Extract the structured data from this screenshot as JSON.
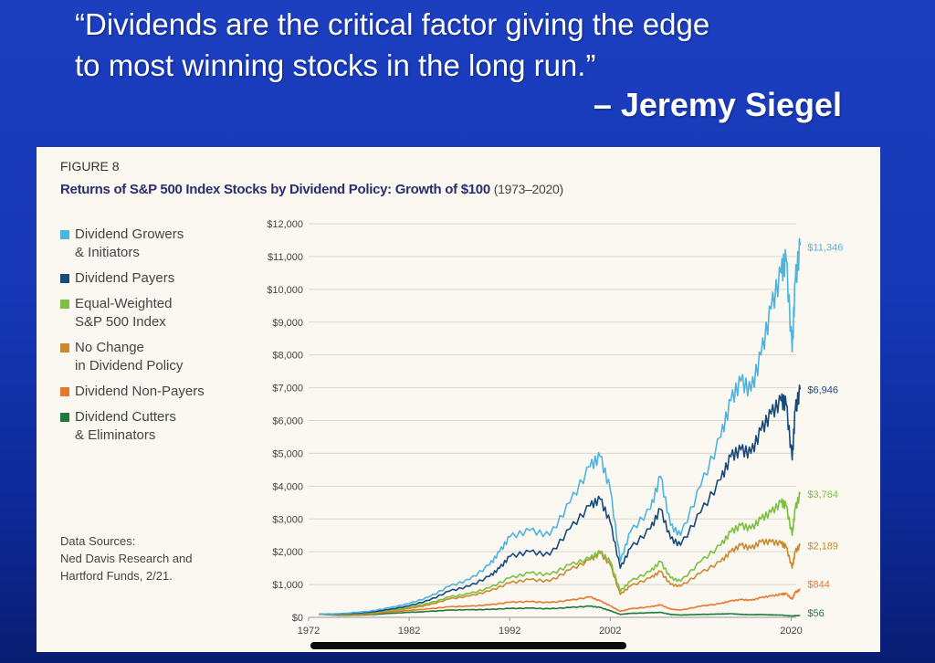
{
  "quote": {
    "line1": "“Dividends are the critical factor giving the edge",
    "line2": "to most winning stocks in the long run.”",
    "author": "– Jeremy Siegel"
  },
  "figure": {
    "label": "FIGURE 8",
    "title": "Returns of S&P 500 Index Stocks by Dividend Policy: Growth of $100",
    "subtitle": "(1973–2020)",
    "sources": "Data Sources:\nNed Davis Research and\nHartford Funds, 2/21."
  },
  "chart_data": {
    "type": "line",
    "title": "Returns of S&P 500 Index Stocks by Dividend Policy: Growth of $100",
    "subtitle": "(1973–2020)",
    "x_ticks": [
      "1972",
      "1982",
      "1992",
      "2002",
      "2020"
    ],
    "x_tick_years": [
      1972,
      1982,
      1992,
      2002,
      2020
    ],
    "xlim": [
      1972,
      2020.5
    ],
    "y_ticks": [
      "$0",
      "$1,000",
      "$2,000",
      "$3,000",
      "$4,000",
      "$5,000",
      "$6,000",
      "$7,000",
      "$8,000",
      "$9,000",
      "$10,000",
      "$11,000",
      "$12,000"
    ],
    "ylim": [
      0,
      12000
    ],
    "grid": "horizontal",
    "legend_position": "left",
    "series": [
      {
        "name": "Dividend Growers\n& Initiators",
        "color": "#4fb3e0",
        "end_label": "$11,346",
        "points": [
          [
            1973,
            100
          ],
          [
            1975,
            110
          ],
          [
            1978,
            180
          ],
          [
            1980,
            290
          ],
          [
            1982,
            420
          ],
          [
            1984,
            620
          ],
          [
            1986,
            950
          ],
          [
            1988,
            1150
          ],
          [
            1990,
            1600
          ],
          [
            1991,
            2000
          ],
          [
            1992,
            2450
          ],
          [
            1994,
            2650
          ],
          [
            1996,
            2500
          ],
          [
            1998,
            3500
          ],
          [
            2000,
            4600
          ],
          [
            2001,
            4900
          ],
          [
            2002,
            3900
          ],
          [
            2003,
            1700
          ],
          [
            2004,
            2600
          ],
          [
            2006,
            3300
          ],
          [
            2007,
            4300
          ],
          [
            2008,
            2800
          ],
          [
            2009,
            2500
          ],
          [
            2011,
            4000
          ],
          [
            2013,
            5500
          ],
          [
            2014,
            6600
          ],
          [
            2015,
            7200
          ],
          [
            2016,
            6900
          ],
          [
            2017,
            8000
          ],
          [
            2018,
            9400
          ],
          [
            2019,
            10500
          ],
          [
            2019.5,
            10900
          ],
          [
            2020.1,
            8100
          ],
          [
            2020.4,
            10200
          ],
          [
            2020.9,
            11346
          ]
        ]
      },
      {
        "name": "Dividend Payers",
        "color": "#17497a",
        "end_label": "$6,946",
        "points": [
          [
            1973,
            100
          ],
          [
            1975,
            100
          ],
          [
            1978,
            150
          ],
          [
            1980,
            240
          ],
          [
            1982,
            350
          ],
          [
            1984,
            520
          ],
          [
            1986,
            800
          ],
          [
            1988,
            950
          ],
          [
            1990,
            1250
          ],
          [
            1991,
            1500
          ],
          [
            1992,
            1850
          ],
          [
            1994,
            2000
          ],
          [
            1996,
            1900
          ],
          [
            1998,
            2700
          ],
          [
            2000,
            3400
          ],
          [
            2001,
            3600
          ],
          [
            2002,
            2900
          ],
          [
            2003,
            1500
          ],
          [
            2004,
            2100
          ],
          [
            2006,
            2700
          ],
          [
            2007,
            3300
          ],
          [
            2008,
            2400
          ],
          [
            2009,
            2200
          ],
          [
            2011,
            3200
          ],
          [
            2013,
            4200
          ],
          [
            2014,
            4900
          ],
          [
            2015,
            5100
          ],
          [
            2016,
            5000
          ],
          [
            2017,
            5700
          ],
          [
            2018,
            6200
          ],
          [
            2019,
            6600
          ],
          [
            2019.5,
            6500
          ],
          [
            2020.1,
            4800
          ],
          [
            2020.4,
            6300
          ],
          [
            2020.9,
            6946
          ]
        ]
      },
      {
        "name": "Equal-Weighted\nS&P 500 Index",
        "color": "#7ac043",
        "end_label": "$3,764",
        "points": [
          [
            1973,
            100
          ],
          [
            1975,
            90
          ],
          [
            1978,
            130
          ],
          [
            1980,
            210
          ],
          [
            1982,
            300
          ],
          [
            1984,
            430
          ],
          [
            1986,
            620
          ],
          [
            1988,
            720
          ],
          [
            1990,
            900
          ],
          [
            1992,
            1200
          ],
          [
            1994,
            1350
          ],
          [
            1996,
            1300
          ],
          [
            1998,
            1600
          ],
          [
            2000,
            1800
          ],
          [
            2001,
            2000
          ],
          [
            2002,
            1700
          ],
          [
            2003,
            800
          ],
          [
            2004,
            1100
          ],
          [
            2006,
            1400
          ],
          [
            2007,
            1700
          ],
          [
            2008,
            1200
          ],
          [
            2009,
            1100
          ],
          [
            2011,
            1700
          ],
          [
            2013,
            2200
          ],
          [
            2014,
            2600
          ],
          [
            2015,
            2800
          ],
          [
            2016,
            2700
          ],
          [
            2017,
            3000
          ],
          [
            2018,
            3200
          ],
          [
            2019,
            3500
          ],
          [
            2019.5,
            3400
          ],
          [
            2020.1,
            2500
          ],
          [
            2020.4,
            3300
          ],
          [
            2020.9,
            3764
          ]
        ]
      },
      {
        "name": "No Change\nin Dividend Policy",
        "color": "#c98a2e",
        "end_label": "$2,189",
        "points": [
          [
            1973,
            100
          ],
          [
            1975,
            90
          ],
          [
            1978,
            120
          ],
          [
            1980,
            190
          ],
          [
            1982,
            270
          ],
          [
            1984,
            380
          ],
          [
            1986,
            560
          ],
          [
            1988,
            650
          ],
          [
            1990,
            800
          ],
          [
            1992,
            1050
          ],
          [
            1994,
            1150
          ],
          [
            1996,
            1100
          ],
          [
            1998,
            1450
          ],
          [
            2000,
            1750
          ],
          [
            2001,
            1950
          ],
          [
            2002,
            1600
          ],
          [
            2003,
            700
          ],
          [
            2004,
            950
          ],
          [
            2006,
            1200
          ],
          [
            2007,
            1400
          ],
          [
            2008,
            1000
          ],
          [
            2009,
            950
          ],
          [
            2011,
            1350
          ],
          [
            2013,
            1700
          ],
          [
            2014,
            2000
          ],
          [
            2015,
            2200
          ],
          [
            2016,
            2100
          ],
          [
            2017,
            2300
          ],
          [
            2018,
            2300
          ],
          [
            2019,
            2250
          ],
          [
            2019.5,
            2150
          ],
          [
            2020.1,
            1500
          ],
          [
            2020.4,
            2000
          ],
          [
            2020.9,
            2189
          ]
        ]
      },
      {
        "name": "Dividend Non-Payers",
        "color": "#e8772e",
        "end_label": "$844",
        "points": [
          [
            1973,
            100
          ],
          [
            1975,
            70
          ],
          [
            1978,
            100
          ],
          [
            1980,
            160
          ],
          [
            1982,
            210
          ],
          [
            1984,
            260
          ],
          [
            1986,
            320
          ],
          [
            1988,
            340
          ],
          [
            1990,
            380
          ],
          [
            1992,
            460
          ],
          [
            1994,
            480
          ],
          [
            1996,
            450
          ],
          [
            1998,
            520
          ],
          [
            2000,
            620
          ],
          [
            2001,
            500
          ],
          [
            2002,
            350
          ],
          [
            2003,
            180
          ],
          [
            2004,
            260
          ],
          [
            2006,
            320
          ],
          [
            2007,
            380
          ],
          [
            2008,
            250
          ],
          [
            2009,
            220
          ],
          [
            2011,
            340
          ],
          [
            2013,
            420
          ],
          [
            2014,
            500
          ],
          [
            2015,
            540
          ],
          [
            2016,
            520
          ],
          [
            2017,
            600
          ],
          [
            2018,
            650
          ],
          [
            2019,
            700
          ],
          [
            2019.5,
            720
          ],
          [
            2020.1,
            550
          ],
          [
            2020.4,
            760
          ],
          [
            2020.9,
            844
          ]
        ]
      },
      {
        "name": "Dividend Cutters\n& Eliminators",
        "color": "#1e7a3a",
        "end_label": "$56",
        "points": [
          [
            1973,
            100
          ],
          [
            1975,
            60
          ],
          [
            1978,
            80
          ],
          [
            1980,
            120
          ],
          [
            1982,
            150
          ],
          [
            1984,
            180
          ],
          [
            1986,
            220
          ],
          [
            1988,
            230
          ],
          [
            1990,
            240
          ],
          [
            1992,
            270
          ],
          [
            1994,
            280
          ],
          [
            1996,
            260
          ],
          [
            1998,
            300
          ],
          [
            2000,
            340
          ],
          [
            2001,
            300
          ],
          [
            2002,
            200
          ],
          [
            2003,
            90
          ],
          [
            2004,
            120
          ],
          [
            2006,
            140
          ],
          [
            2007,
            150
          ],
          [
            2008,
            90
          ],
          [
            2009,
            70
          ],
          [
            2011,
            90
          ],
          [
            2013,
            100
          ],
          [
            2014,
            110
          ],
          [
            2015,
            90
          ],
          [
            2016,
            80
          ],
          [
            2017,
            85
          ],
          [
            2018,
            75
          ],
          [
            2019,
            70
          ],
          [
            2020.1,
            40
          ],
          [
            2020.4,
            50
          ],
          [
            2020.9,
            56
          ]
        ]
      }
    ]
  }
}
